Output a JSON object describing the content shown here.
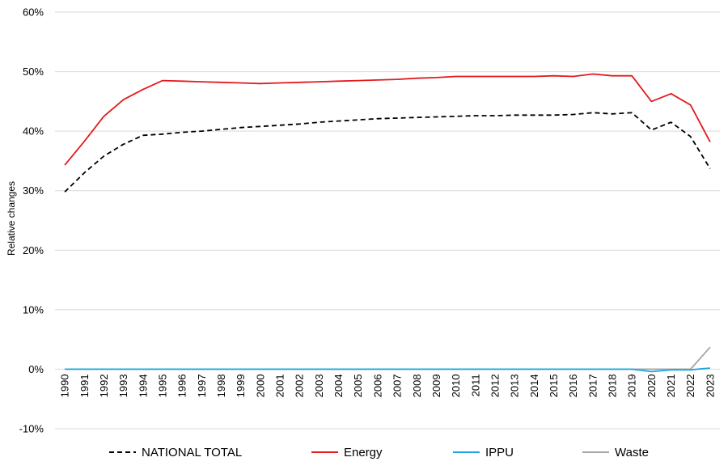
{
  "chart_data": {
    "type": "line",
    "title": "",
    "xlabel": "",
    "ylabel": "Relative changes",
    "ylim": [
      -10,
      60
    ],
    "yticks": [
      "-10%",
      "0%",
      "10%",
      "20%",
      "30%",
      "40%",
      "50%",
      "60%"
    ],
    "ytick_values": [
      -10,
      0,
      10,
      20,
      30,
      40,
      50,
      60
    ],
    "grid": true,
    "legend_position": "bottom",
    "x": [
      "1990",
      "1991",
      "1992",
      "1993",
      "1994",
      "1995",
      "1996",
      "1997",
      "1998",
      "1999",
      "2000",
      "2001",
      "2002",
      "2003",
      "2004",
      "2005",
      "2006",
      "2007",
      "2008",
      "2009",
      "2010",
      "2011",
      "2012",
      "2013",
      "2014",
      "2015",
      "2016",
      "2017",
      "2018",
      "2019",
      "2020",
      "2021",
      "2022",
      "2023"
    ],
    "series": [
      {
        "name": "NATIONAL TOTAL",
        "color": "#000000",
        "dash": true,
        "values": [
          29.8,
          33.0,
          35.8,
          37.8,
          39.3,
          39.5,
          39.8,
          40.0,
          40.3,
          40.6,
          40.8,
          41.0,
          41.2,
          41.5,
          41.7,
          41.9,
          42.1,
          42.2,
          42.3,
          42.4,
          42.5,
          42.6,
          42.6,
          42.7,
          42.7,
          42.7,
          42.8,
          43.1,
          42.9,
          43.1,
          40.2,
          41.5,
          39.1,
          33.7
        ]
      },
      {
        "name": "Energy",
        "color": "#e31a1c",
        "dash": false,
        "values": [
          34.3,
          38.3,
          42.5,
          45.3,
          47.0,
          48.5,
          48.4,
          48.3,
          48.2,
          48.1,
          48.0,
          48.1,
          48.2,
          48.3,
          48.4,
          48.5,
          48.6,
          48.7,
          48.9,
          49.0,
          49.2,
          49.2,
          49.2,
          49.2,
          49.2,
          49.3,
          49.2,
          49.6,
          49.3,
          49.3,
          45.0,
          46.3,
          44.4,
          38.2
        ]
      },
      {
        "name": "IPPU",
        "color": "#1ea7e0",
        "dash": false,
        "values": [
          0,
          0,
          0,
          0,
          0,
          0,
          0,
          0,
          0,
          0,
          0,
          0,
          0,
          0,
          0,
          0,
          0,
          0,
          0,
          0,
          0,
          0,
          0,
          0,
          0,
          0,
          0,
          0,
          0,
          0,
          -0.4,
          -0.1,
          -0.1,
          0.2
        ]
      },
      {
        "name": "Waste",
        "color": "#a6a6a6",
        "dash": false,
        "values": [
          0,
          0,
          0,
          0,
          0,
          0,
          0,
          0,
          0,
          0,
          0,
          0,
          0,
          0,
          0,
          0,
          0,
          0,
          0,
          0,
          0,
          0,
          0,
          0,
          0,
          0,
          0,
          0,
          0,
          0,
          0,
          0,
          0,
          3.7
        ]
      }
    ]
  }
}
